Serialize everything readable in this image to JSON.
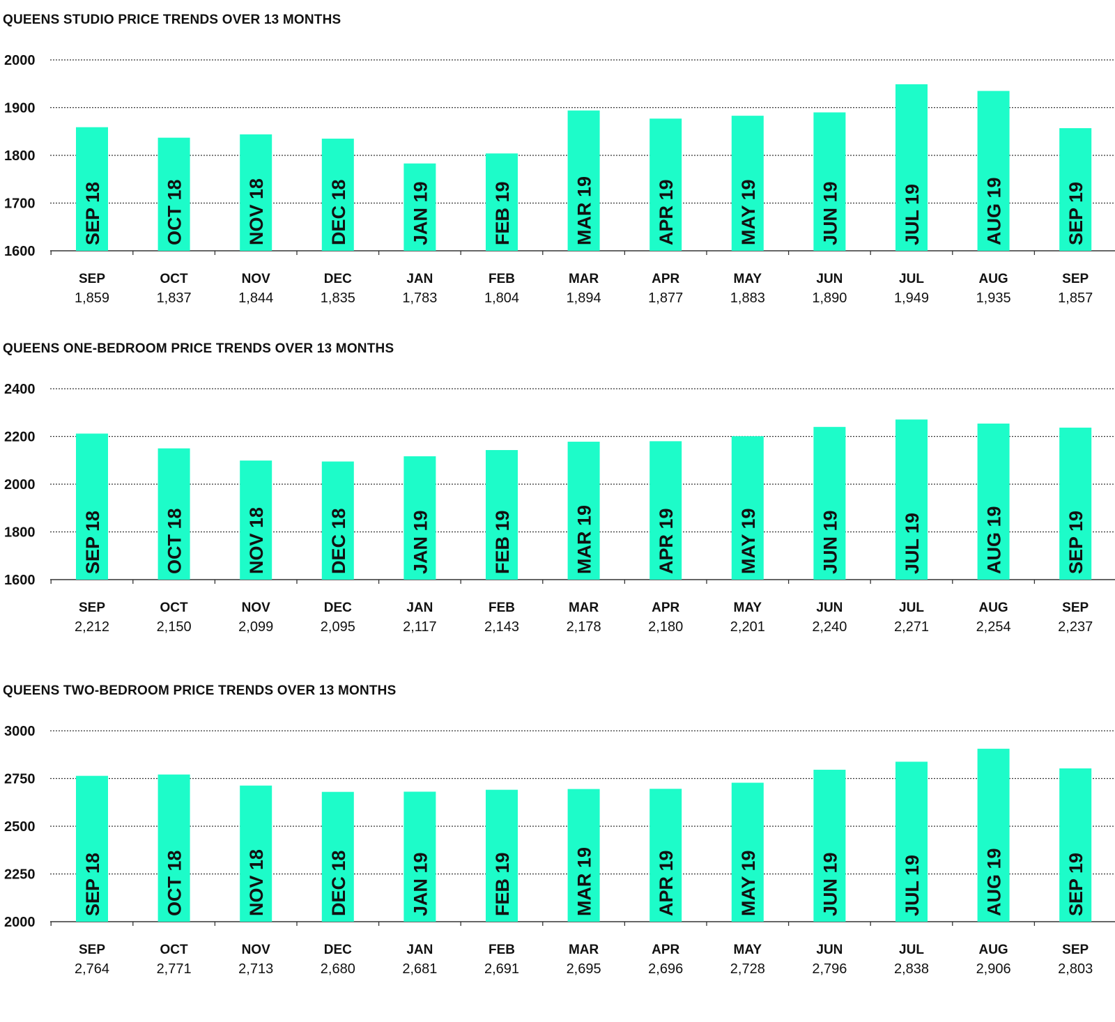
{
  "colors": {
    "bar": "#1dfcc9",
    "grid": "#333333",
    "text": "#111111"
  },
  "chart_data": [
    {
      "type": "bar",
      "title": "QUEENS STUDIO PRICE TRENDS OVER 13 MONTHS",
      "ylim": [
        1600,
        2000
      ],
      "yticks": [
        "2000",
        "1900",
        "1800",
        "1700",
        "1600"
      ],
      "grid": true,
      "bar_labels": [
        "SEP 18",
        "OCT 18",
        "NOV 18",
        "DEC 18",
        "JAN 19",
        "FEB 19",
        "MAR 19",
        "APR 19",
        "MAY 19",
        "JUN 19",
        "JUL 19",
        "AUG 19",
        "SEP 19"
      ],
      "categories": [
        "SEP",
        "OCT",
        "NOV",
        "DEC",
        "JAN",
        "FEB",
        "MAR",
        "APR",
        "MAY",
        "JUN",
        "JUL",
        "AUG",
        "SEP"
      ],
      "values": [
        1859,
        1837,
        1844,
        1835,
        1783,
        1804,
        1894,
        1877,
        1883,
        1890,
        1949,
        1935,
        1857
      ],
      "value_labels": [
        "1,859",
        "1,837",
        "1,844",
        "1,835",
        "1,783",
        "1,804",
        "1,894",
        "1,877",
        "1,883",
        "1,890",
        "1,949",
        "1,935",
        "1,857"
      ]
    },
    {
      "type": "bar",
      "title": "QUEENS ONE-BEDROOM PRICE TRENDS OVER 13 MONTHS",
      "ylim": [
        1600,
        2400
      ],
      "yticks": [
        "2400",
        "2200",
        "2000",
        "1800",
        "1600"
      ],
      "grid": true,
      "bar_labels": [
        "SEP 18",
        "OCT 18",
        "NOV 18",
        "DEC 18",
        "JAN 19",
        "FEB 19",
        "MAR 19",
        "APR 19",
        "MAY 19",
        "JUN 19",
        "JUL 19",
        "AUG 19",
        "SEP 19"
      ],
      "categories": [
        "SEP",
        "OCT",
        "NOV",
        "DEC",
        "JAN",
        "FEB",
        "MAR",
        "APR",
        "MAY",
        "JUN",
        "JUL",
        "AUG",
        "SEP"
      ],
      "values": [
        2212,
        2150,
        2099,
        2095,
        2117,
        2143,
        2178,
        2180,
        2201,
        2240,
        2271,
        2254,
        2237
      ],
      "value_labels": [
        "2,212",
        "2,150",
        "2,099",
        "2,095",
        "2,117",
        "2,143",
        "2,178",
        "2,180",
        "2,201",
        "2,240",
        "2,271",
        "2,254",
        "2,237"
      ]
    },
    {
      "type": "bar",
      "title": "QUEENS TWO-BEDROOM PRICE TRENDS OVER 13 MONTHS",
      "ylim": [
        2000,
        3000
      ],
      "yticks": [
        "3000",
        "2750",
        "2500",
        "2250",
        "2000"
      ],
      "grid": true,
      "bar_labels": [
        "SEP 18",
        "OCT 18",
        "NOV 18",
        "DEC 18",
        "JAN 19",
        "FEB 19",
        "MAR 19",
        "APR 19",
        "MAY 19",
        "JUN 19",
        "JUL 19",
        "AUG 19",
        "SEP 19"
      ],
      "categories": [
        "SEP",
        "OCT",
        "NOV",
        "DEC",
        "JAN",
        "FEB",
        "MAR",
        "APR",
        "MAY",
        "JUN",
        "JUL",
        "AUG",
        "SEP"
      ],
      "values": [
        2764,
        2771,
        2713,
        2680,
        2681,
        2691,
        2695,
        2696,
        2728,
        2796,
        2838,
        2906,
        2803
      ],
      "value_labels": [
        "2,764",
        "2,771",
        "2,713",
        "2,680",
        "2,681",
        "2,691",
        "2,695",
        "2,696",
        "2,728",
        "2,796",
        "2,838",
        "2,906",
        "2,803"
      ]
    }
  ]
}
